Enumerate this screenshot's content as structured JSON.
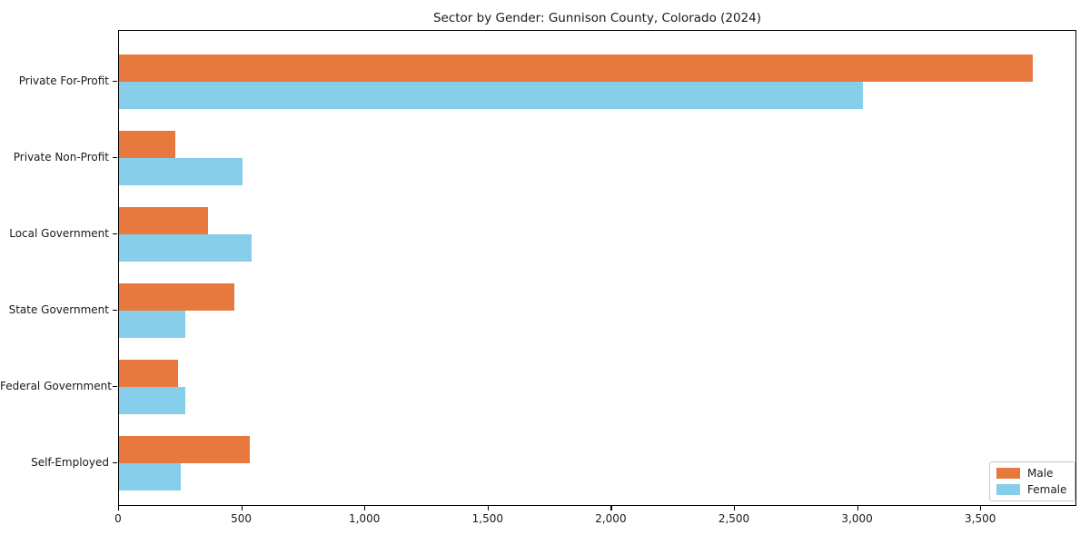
{
  "chart_data": {
    "type": "bar",
    "orientation": "horizontal",
    "title": "Sector by Gender: Gunnison County, Colorado (2024)",
    "categories": [
      "Private For-Profit",
      "Private Non-Profit",
      "Local Government",
      "State Government",
      "Federal Government",
      "Self-Employed"
    ],
    "series": [
      {
        "name": "Male",
        "color": "#e8793e",
        "values": [
          3710,
          230,
          360,
          470,
          240,
          530
        ]
      },
      {
        "name": "Female",
        "color": "#87ceeb",
        "values": [
          3020,
          500,
          540,
          270,
          270,
          250
        ]
      }
    ],
    "xlabel": "",
    "ylabel": "",
    "xlim": [
      0,
      3890
    ],
    "xticks": [
      0,
      500,
      1000,
      1500,
      2000,
      2500,
      3000,
      3500
    ],
    "xtick_labels": [
      "0",
      "500",
      "1,000",
      "1,500",
      "2,000",
      "2,500",
      "3,000",
      "3,500"
    ],
    "grid": false,
    "legend_position": "lower right",
    "axis_color": "#000000",
    "background_color": "#ffffff"
  }
}
